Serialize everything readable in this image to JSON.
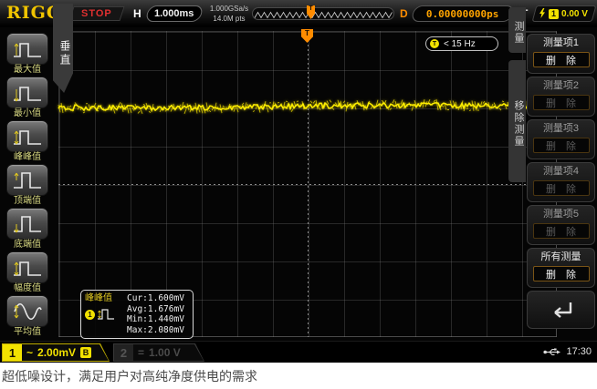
{
  "brand": "RIGOL",
  "topbar": {
    "run_state": "STOP",
    "h_label": "H",
    "timebase": "1.000ms",
    "sample_rate": "1.000GSa/s",
    "memory_depth": "14.0M pts",
    "delay_label": "D",
    "delay_value": "0.00000000ps",
    "trigger_label": "T",
    "trigger_source": "1",
    "trigger_level": "0.00 V"
  },
  "graticule": {
    "trigger_marker": "T",
    "frequency_badge": {
      "icon": "T",
      "text": "< 15 Hz"
    }
  },
  "left_menu": {
    "tab": "垂直",
    "items": [
      {
        "label": "最大值"
      },
      {
        "label": "最小值"
      },
      {
        "label": "峰峰值"
      },
      {
        "label": "顶端值"
      },
      {
        "label": "底端值"
      },
      {
        "label": "幅度值"
      },
      {
        "label": "平均值"
      }
    ]
  },
  "right_menu": {
    "tab_measure": "测量",
    "tab_remove": "移除测量",
    "items": [
      {
        "title": "测量项1",
        "button": "删 除"
      },
      {
        "title": "测量项2",
        "button": "删 除"
      },
      {
        "title": "测量项3",
        "button": "删 除"
      },
      {
        "title": "测量项4",
        "button": "删 除"
      },
      {
        "title": "测量项5",
        "button": "删 除"
      },
      {
        "title": "所有测量",
        "button": "删 除"
      }
    ]
  },
  "measurement_popup": {
    "title": "峰峰值",
    "channel": "1",
    "rows": [
      "Cur:1.600mV",
      "Avg:1.676mV",
      "Min:1.440mV",
      "Max:2.080mV"
    ]
  },
  "channels": [
    {
      "id": "1",
      "coupling": "~",
      "scale": "2.00mV",
      "badge": "B"
    },
    {
      "id": "2",
      "coupling": "=",
      "scale": "1.00 V"
    }
  ],
  "statusbar": {
    "time": "17:30"
  },
  "caption": "超低噪设计，满足用户对高纯净度供电的需求",
  "colors": {
    "ch1-yellow": "#f2e200",
    "trigger-orange": "#ff8c00",
    "stop-red": "#e03030",
    "menu-label": "#d8d882"
  }
}
